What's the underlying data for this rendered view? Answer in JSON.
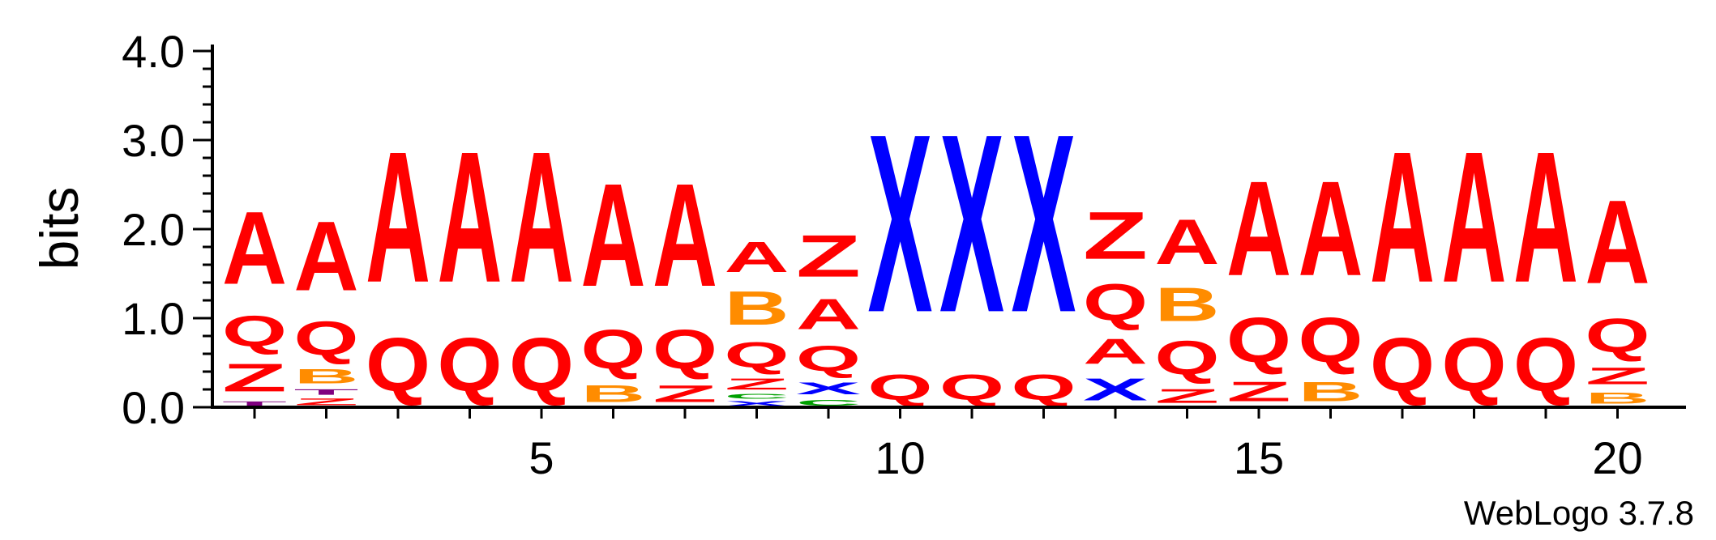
{
  "chart_data": {
    "type": "sequence-logo",
    "ylabel": "bits",
    "ylim": [
      0,
      4.0
    ],
    "y_ticks": [
      {
        "value": 0,
        "label": "0.0"
      },
      {
        "value": 1,
        "label": "1.0"
      },
      {
        "value": 2,
        "label": "2.0"
      },
      {
        "value": 3,
        "label": "3.0"
      },
      {
        "value": 4,
        "label": "4.0"
      }
    ],
    "x_positions": [
      1,
      2,
      3,
      4,
      5,
      6,
      7,
      8,
      9,
      10,
      11,
      12,
      13,
      14,
      15,
      16,
      17,
      18,
      19,
      20
    ],
    "x_ticks": [
      {
        "value": 5,
        "label": "5"
      },
      {
        "value": 10,
        "label": "10"
      },
      {
        "value": 15,
        "label": "15"
      },
      {
        "value": 20,
        "label": "20"
      }
    ],
    "colors": {
      "A": "#ff0000",
      "Q": "#ff0000",
      "Z": "#ff0000",
      "B": "#ff8c00",
      "X": "#0000ff",
      "C": "#00a000",
      "T": "#800080"
    },
    "stacks": [
      {
        "position": 1,
        "letters": [
          {
            "letter": "T",
            "height": 0.08
          },
          {
            "letter": "Z",
            "height": 0.5
          },
          {
            "letter": "Q",
            "height": 0.55
          },
          {
            "letter": "A",
            "height": 1.3
          }
        ]
      },
      {
        "position": 2,
        "letters": [
          {
            "letter": "Z",
            "height": 0.12
          },
          {
            "letter": "T",
            "height": 0.1
          },
          {
            "letter": "B",
            "height": 0.25
          },
          {
            "letter": "Q",
            "height": 0.6
          },
          {
            "letter": "A",
            "height": 1.25
          }
        ]
      },
      {
        "position": 3,
        "letters": [
          {
            "letter": "Q",
            "height": 0.95
          },
          {
            "letter": "A",
            "height": 2.35
          }
        ]
      },
      {
        "position": 4,
        "letters": [
          {
            "letter": "Q",
            "height": 0.95
          },
          {
            "letter": "A",
            "height": 2.35
          }
        ]
      },
      {
        "position": 5,
        "letters": [
          {
            "letter": "Q",
            "height": 0.95
          },
          {
            "letter": "A",
            "height": 2.35
          }
        ]
      },
      {
        "position": 6,
        "letters": [
          {
            "letter": "B",
            "height": 0.3
          },
          {
            "letter": "Q",
            "height": 0.7
          },
          {
            "letter": "A",
            "height": 1.85
          }
        ]
      },
      {
        "position": 7,
        "letters": [
          {
            "letter": "Z",
            "height": 0.3
          },
          {
            "letter": "Q",
            "height": 0.7
          },
          {
            "letter": "A",
            "height": 1.85
          }
        ]
      },
      {
        "position": 8,
        "letters": [
          {
            "letter": "X",
            "height": 0.08
          },
          {
            "letter": "C",
            "height": 0.08
          },
          {
            "letter": "Z",
            "height": 0.2
          },
          {
            "letter": "Q",
            "height": 0.45
          },
          {
            "letter": "B",
            "height": 0.6
          },
          {
            "letter": "A",
            "height": 0.55
          }
        ]
      },
      {
        "position": 9,
        "letters": [
          {
            "letter": "C",
            "height": 0.1
          },
          {
            "letter": "X",
            "height": 0.22
          },
          {
            "letter": "Q",
            "height": 0.45
          },
          {
            "letter": "A",
            "height": 0.55
          },
          {
            "letter": "Z",
            "height": 0.75
          }
        ]
      },
      {
        "position": 10,
        "letters": [
          {
            "letter": "Q",
            "height": 0.45
          },
          {
            "letter": "X",
            "height": 3.2
          }
        ]
      },
      {
        "position": 11,
        "letters": [
          {
            "letter": "Q",
            "height": 0.45
          },
          {
            "letter": "X",
            "height": 3.2
          }
        ]
      },
      {
        "position": 12,
        "letters": [
          {
            "letter": "Q",
            "height": 0.45
          },
          {
            "letter": "X",
            "height": 3.2
          }
        ]
      },
      {
        "position": 13,
        "letters": [
          {
            "letter": "X",
            "height": 0.4
          },
          {
            "letter": "A",
            "height": 0.45
          },
          {
            "letter": "Q",
            "height": 0.65
          },
          {
            "letter": "Z",
            "height": 0.85
          }
        ]
      },
      {
        "position": 14,
        "letters": [
          {
            "letter": "Z",
            "height": 0.25
          },
          {
            "letter": "Q",
            "height": 0.6
          },
          {
            "letter": "B",
            "height": 0.6
          },
          {
            "letter": "A",
            "height": 0.8
          }
        ]
      },
      {
        "position": 15,
        "letters": [
          {
            "letter": "Z",
            "height": 0.35
          },
          {
            "letter": "Q",
            "height": 0.8
          },
          {
            "letter": "A",
            "height": 1.7
          }
        ]
      },
      {
        "position": 16,
        "letters": [
          {
            "letter": "B",
            "height": 0.35
          },
          {
            "letter": "Q",
            "height": 0.8
          },
          {
            "letter": "A",
            "height": 1.7
          }
        ]
      },
      {
        "position": 17,
        "letters": [
          {
            "letter": "Q",
            "height": 0.95
          },
          {
            "letter": "A",
            "height": 2.35
          }
        ]
      },
      {
        "position": 18,
        "letters": [
          {
            "letter": "Q",
            "height": 0.95
          },
          {
            "letter": "A",
            "height": 2.35
          }
        ]
      },
      {
        "position": 19,
        "letters": [
          {
            "letter": "Q",
            "height": 0.95
          },
          {
            "letter": "A",
            "height": 2.35
          }
        ]
      },
      {
        "position": 20,
        "letters": [
          {
            "letter": "B",
            "height": 0.2
          },
          {
            "letter": "Z",
            "height": 0.3
          },
          {
            "letter": "Q",
            "height": 0.6
          },
          {
            "letter": "A",
            "height": 1.5
          }
        ]
      }
    ]
  },
  "footer": {
    "credit": "WebLogo 3.7.8"
  }
}
